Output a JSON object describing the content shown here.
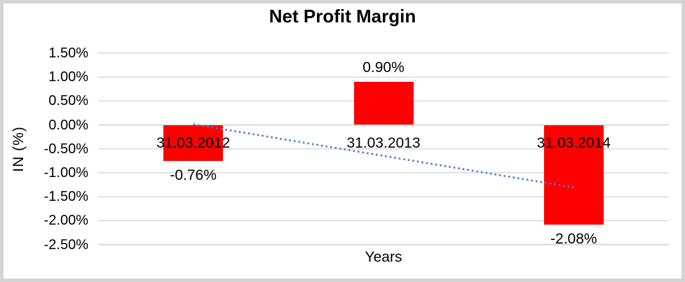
{
  "chart_data": {
    "type": "bar",
    "title": "Net Profit Margin",
    "xlabel": "Years",
    "ylabel": "IN (%)",
    "categories": [
      "31.03.2012",
      "31.03.2013",
      "31.03.2014"
    ],
    "series": [
      {
        "name": "Net Profit Margin",
        "values": [
          -0.76,
          0.9,
          -2.08
        ]
      }
    ],
    "data_labels": [
      "-0.76%",
      "0.90%",
      "-2.08%"
    ],
    "y_ticks": [
      {
        "value": 1.5,
        "label": "1.50%"
      },
      {
        "value": 1.0,
        "label": "1.00%"
      },
      {
        "value": 0.5,
        "label": "0.50%"
      },
      {
        "value": 0.0,
        "label": "0.00%"
      },
      {
        "value": -0.5,
        "label": "-0.50%"
      },
      {
        "value": -1.0,
        "label": "-1.00%"
      },
      {
        "value": -1.5,
        "label": "-1.50%"
      },
      {
        "value": -2.0,
        "label": "-2.00%"
      },
      {
        "value": -2.5,
        "label": "-2.50%"
      }
    ],
    "ylim": [
      -2.5,
      1.5
    ],
    "grid": true,
    "legend": "none",
    "colors": {
      "bar": "#ff0000",
      "gridline": "#d9d9d9",
      "text": "#000000",
      "frame_border": "#d4d4d4",
      "trendline": "#4a7ebb"
    },
    "trendline": {
      "kind": "linear",
      "style": "dotted"
    }
  }
}
